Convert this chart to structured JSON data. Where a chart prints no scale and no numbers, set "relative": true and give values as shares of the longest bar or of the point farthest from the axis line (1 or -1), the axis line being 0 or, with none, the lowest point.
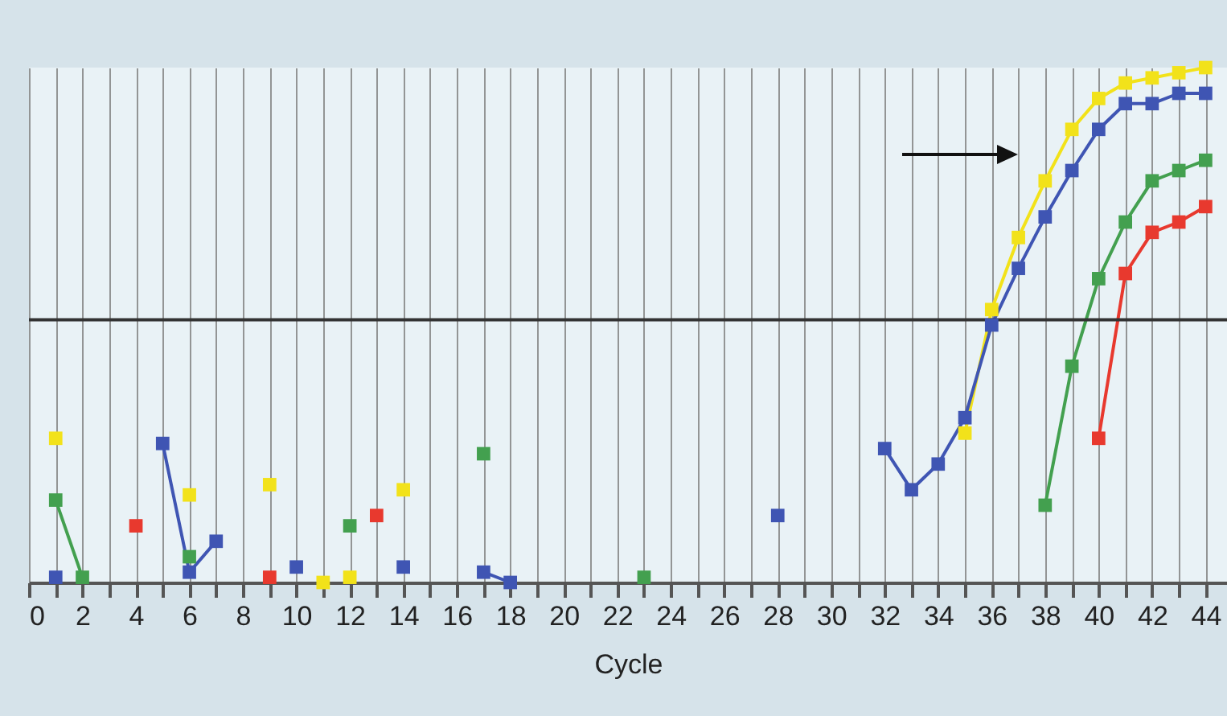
{
  "chart_data": {
    "type": "line",
    "xlabel": "Cycle",
    "relative": true,
    "marker": "square",
    "grid": "x",
    "xlim": [
      0,
      44.8
    ],
    "xticks": [
      0,
      {
        "value": 1,
        "label": null
      },
      2,
      {
        "value": 3,
        "label": null
      },
      4,
      {
        "value": 5,
        "label": null
      },
      6,
      {
        "value": 7,
        "label": null
      },
      8,
      {
        "value": 9,
        "label": null
      },
      10,
      {
        "value": 11,
        "label": null
      },
      12,
      {
        "value": 13,
        "label": null
      },
      14,
      {
        "value": 15,
        "label": null
      },
      16,
      {
        "value": 17,
        "label": null
      },
      18,
      {
        "value": 19,
        "label": null
      },
      20,
      {
        "value": 21,
        "label": null
      },
      22,
      {
        "value": 23,
        "label": null
      },
      24,
      {
        "value": 25,
        "label": null
      },
      26,
      {
        "value": 27,
        "label": null
      },
      28,
      {
        "value": 29,
        "label": null
      },
      30,
      {
        "value": 31,
        "label": null
      },
      32,
      {
        "value": 33,
        "label": null
      },
      34,
      {
        "value": 35,
        "label": null
      },
      36,
      {
        "value": 37,
        "label": null
      },
      38,
      {
        "value": 39,
        "label": null
      },
      40,
      {
        "value": 41,
        "label": null
      },
      42,
      {
        "value": 43,
        "label": null
      },
      44
    ],
    "series": [
      {
        "type": "line",
        "color": "#f2e21a",
        "x": [
          35,
          36,
          37,
          38,
          39,
          40,
          41,
          42,
          43,
          44
        ],
        "values": [
          0.29,
          0.53,
          0.67,
          0.78,
          0.88,
          0.94,
          0.97,
          0.98,
          0.99,
          1.0
        ]
      },
      {
        "type": "scatter",
        "color": "#f2e21a",
        "x": [
          1,
          6,
          9,
          11,
          12,
          14
        ],
        "values": [
          0.28,
          0.17,
          0.19,
          0.0,
          0.01,
          0.18
        ]
      },
      {
        "type": "line",
        "color": "#3f55b3",
        "x": [
          5,
          6,
          7
        ],
        "values": [
          0.27,
          0.02,
          0.08
        ]
      },
      {
        "type": "line",
        "color": "#3f55b3",
        "x": [
          17,
          18
        ],
        "values": [
          0.02,
          0.0
        ]
      },
      {
        "type": "line",
        "color": "#3f55b3",
        "x": [
          32,
          33,
          34,
          35,
          36,
          37,
          38,
          39,
          40,
          41,
          42,
          43,
          44
        ],
        "values": [
          0.26,
          0.18,
          0.23,
          0.32,
          0.5,
          0.61,
          0.71,
          0.8,
          0.88,
          0.93,
          0.93,
          0.95,
          0.95
        ]
      },
      {
        "type": "scatter",
        "color": "#3f55b3",
        "x": [
          1,
          10,
          14,
          28
        ],
        "values": [
          0.01,
          0.03,
          0.03,
          0.13
        ]
      },
      {
        "type": "line",
        "color": "#43a04f",
        "x": [
          1,
          2
        ],
        "values": [
          0.16,
          0.01
        ]
      },
      {
        "type": "line",
        "color": "#43a04f",
        "x": [
          38,
          39,
          40,
          41,
          42,
          43,
          44
        ],
        "values": [
          0.15,
          0.42,
          0.59,
          0.7,
          0.78,
          0.8,
          0.82
        ]
      },
      {
        "type": "scatter",
        "color": "#43a04f",
        "x": [
          6,
          12,
          17,
          23
        ],
        "values": [
          0.05,
          0.11,
          0.25,
          0.01
        ]
      },
      {
        "type": "line",
        "color": "#e8392e",
        "x": [
          40,
          41,
          42,
          43,
          44
        ],
        "values": [
          0.28,
          0.6,
          0.68,
          0.7,
          0.73
        ]
      },
      {
        "type": "scatter",
        "color": "#e8392e",
        "x": [
          4,
          9,
          13
        ],
        "values": [
          0.11,
          0.01,
          0.13
        ]
      }
    ],
    "ref_lines": [
      {
        "axis": "y",
        "value": 0.51,
        "color": "#333333"
      }
    ]
  }
}
